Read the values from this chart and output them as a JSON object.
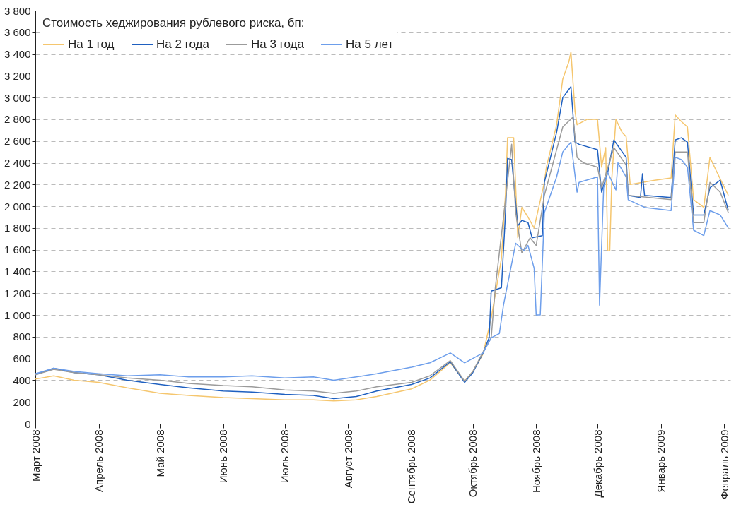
{
  "chart_data": {
    "type": "line",
    "legend_title": "Стоимость хеджирования рублевого риска, бп:",
    "legend": "top left",
    "grid": "y",
    "line_style": "solid",
    "marker": "none",
    "xlim": [
      "2008-03-01",
      "2009-02-04"
    ],
    "xticks": [
      {
        "value": "2008-03-01",
        "label": "Март 2008"
      },
      {
        "value": "2008-04-01",
        "label": "Апрель 2008"
      },
      {
        "value": "2008-05-01",
        "label": "Май 2008"
      },
      {
        "value": "2008-06-01",
        "label": "Июнь 2008"
      },
      {
        "value": "2008-07-01",
        "label": "Июль 2008"
      },
      {
        "value": "2008-08-01",
        "label": "Август 2008"
      },
      {
        "value": "2008-09-01",
        "label": "Сентябрь 2008"
      },
      {
        "value": "2008-10-01",
        "label": "Октябрь 2008"
      },
      {
        "value": "2008-11-01",
        "label": "Ноябрь 2008"
      },
      {
        "value": "2008-12-01",
        "label": "Декабрь 2008"
      },
      {
        "value": "2009-01-01",
        "label": "Январь 2009"
      },
      {
        "value": "2009-02-01",
        "label": "Февраль 2009"
      }
    ],
    "ylim": [
      0,
      3800
    ],
    "yticks": [
      0,
      200,
      400,
      600,
      800,
      {
        "value": 1000,
        "label": "1 000"
      },
      {
        "value": 1200,
        "label": "1 200"
      },
      {
        "value": 1400,
        "label": "1 400"
      },
      {
        "value": 1600,
        "label": "1 600"
      },
      {
        "value": 1800,
        "label": "1 800"
      },
      {
        "value": 2000,
        "label": "2 000"
      },
      {
        "value": 2200,
        "label": "2 200"
      },
      {
        "value": 2400,
        "label": "2 400"
      },
      {
        "value": 2600,
        "label": "2 600"
      },
      {
        "value": 2800,
        "label": "2 800"
      },
      {
        "value": 3000,
        "label": "3 000"
      },
      {
        "value": 3200,
        "label": "3 200"
      },
      {
        "value": 3400,
        "label": "3 400"
      },
      {
        "value": 3600,
        "label": "3 600"
      },
      {
        "value": 3800,
        "label": "3 800"
      }
    ],
    "series": [
      {
        "name": "На 1 год",
        "color": "#f5c66e",
        "x": [
          "2008-03-01",
          "2008-03-10",
          "2008-03-20",
          "2008-04-01",
          "2008-04-15",
          "2008-05-01",
          "2008-05-15",
          "2008-06-01",
          "2008-06-15",
          "2008-07-01",
          "2008-07-15",
          "2008-07-25",
          "2008-08-05",
          "2008-08-15",
          "2008-09-01",
          "2008-09-10",
          "2008-09-20",
          "2008-09-27",
          "2008-10-01",
          "2008-10-06",
          "2008-10-10",
          "2008-10-15",
          "2008-10-17",
          "2008-10-18",
          "2008-10-21",
          "2008-10-23",
          "2008-10-25",
          "2008-10-28",
          "2008-10-31",
          "2008-11-05",
          "2008-11-06",
          "2008-11-11",
          "2008-11-14",
          "2008-11-17",
          "2008-11-18",
          "2008-11-20",
          "2008-11-21",
          "2008-11-26",
          "2008-12-01",
          "2008-12-03",
          "2008-12-05",
          "2008-12-06",
          "2008-12-07",
          "2008-12-08",
          "2008-12-10",
          "2008-12-13",
          "2008-12-15",
          "2008-12-17",
          "2008-12-23",
          "2008-12-29",
          "2009-01-06",
          "2009-01-08",
          "2009-01-11",
          "2009-01-14",
          "2009-01-17",
          "2009-01-22",
          "2009-01-25",
          "2009-01-28",
          "2009-02-03"
        ],
        "values": [
          410,
          440,
          400,
          380,
          330,
          280,
          260,
          240,
          230,
          220,
          220,
          210,
          220,
          250,
          320,
          400,
          560,
          390,
          480,
          640,
          970,
          1520,
          2120,
          2630,
          2630,
          1710,
          1990,
          1900,
          1800,
          2220,
          2360,
          2750,
          3170,
          3330,
          3420,
          2870,
          2750,
          2800,
          2800,
          2360,
          2540,
          1590,
          1590,
          2260,
          2800,
          2680,
          2640,
          2200,
          2220,
          2240,
          2260,
          2840,
          2780,
          2730,
          2060,
          1990,
          2450,
          2330,
          2100
        ]
      },
      {
        "name": "На 2 года",
        "color": "#1f60c0",
        "x": [
          "2008-03-01",
          "2008-03-10",
          "2008-03-20",
          "2008-04-01",
          "2008-04-15",
          "2008-05-01",
          "2008-05-15",
          "2008-06-01",
          "2008-06-15",
          "2008-07-01",
          "2008-07-15",
          "2008-07-25",
          "2008-08-05",
          "2008-08-15",
          "2008-09-01",
          "2008-09-10",
          "2008-09-20",
          "2008-09-27",
          "2008-10-01",
          "2008-10-06",
          "2008-10-09",
          "2008-10-10",
          "2008-10-15",
          "2008-10-17",
          "2008-10-18",
          "2008-10-20",
          "2008-10-23",
          "2008-10-25",
          "2008-10-28",
          "2008-10-30",
          "2008-11-04",
          "2008-11-05",
          "2008-11-11",
          "2008-11-14",
          "2008-11-18",
          "2008-11-20",
          "2008-11-22",
          "2008-12-01",
          "2008-12-03",
          "2008-12-06",
          "2008-12-09",
          "2008-12-15",
          "2008-12-16",
          "2008-12-22",
          "2008-12-23",
          "2008-12-24",
          "2009-01-06",
          "2009-01-08",
          "2009-01-11",
          "2009-01-14",
          "2009-01-17",
          "2009-01-22",
          "2009-01-25",
          "2009-01-30",
          "2009-02-03"
        ],
        "values": [
          450,
          510,
          470,
          450,
          400,
          360,
          330,
          300,
          290,
          270,
          260,
          230,
          250,
          300,
          360,
          420,
          570,
          380,
          470,
          650,
          790,
          1220,
          1250,
          1940,
          2440,
          2430,
          1820,
          1870,
          1850,
          1710,
          1730,
          2220,
          2680,
          3000,
          3100,
          2590,
          2570,
          2520,
          2130,
          2310,
          2610,
          2450,
          2100,
          2080,
          2300,
          2100,
          2080,
          2610,
          2630,
          2590,
          1920,
          1920,
          2170,
          2240,
          1960
        ]
      },
      {
        "name": "На 3 года",
        "color": "#9b9b9b",
        "x": [
          "2008-03-01",
          "2008-03-10",
          "2008-03-20",
          "2008-04-01",
          "2008-04-15",
          "2008-05-01",
          "2008-05-15",
          "2008-06-01",
          "2008-06-15",
          "2008-07-01",
          "2008-07-15",
          "2008-07-25",
          "2008-08-05",
          "2008-08-15",
          "2008-09-01",
          "2008-09-10",
          "2008-09-20",
          "2008-09-27",
          "2008-10-01",
          "2008-10-06",
          "2008-10-10",
          "2008-10-12",
          "2008-10-17",
          "2008-10-20",
          "2008-10-22",
          "2008-10-25",
          "2008-10-29",
          "2008-11-01",
          "2008-11-05",
          "2008-11-11",
          "2008-11-14",
          "2008-11-19",
          "2008-11-21",
          "2008-11-24",
          "2008-12-01",
          "2008-12-03",
          "2008-12-09",
          "2008-12-15",
          "2008-12-16",
          "2009-01-06",
          "2009-01-08",
          "2009-01-14",
          "2009-01-17",
          "2009-01-22",
          "2009-01-25",
          "2009-01-30",
          "2009-02-03"
        ],
        "values": [
          450,
          500,
          470,
          450,
          420,
          400,
          370,
          350,
          340,
          310,
          300,
          280,
          300,
          340,
          380,
          440,
          580,
          390,
          480,
          660,
          790,
          1250,
          2060,
          2570,
          1940,
          1570,
          1710,
          1640,
          2100,
          2520,
          2730,
          2820,
          2450,
          2400,
          2360,
          2170,
          2540,
          2380,
          2100,
          2060,
          2500,
          2500,
          1850,
          1850,
          2220,
          2130,
          1940
        ]
      },
      {
        "name": "На 5 лет",
        "color": "#6d9eeb",
        "x": [
          "2008-03-01",
          "2008-03-10",
          "2008-03-20",
          "2008-04-01",
          "2008-04-15",
          "2008-05-01",
          "2008-05-15",
          "2008-06-01",
          "2008-06-15",
          "2008-07-01",
          "2008-07-15",
          "2008-07-25",
          "2008-08-05",
          "2008-08-15",
          "2008-09-01",
          "2008-09-10",
          "2008-09-20",
          "2008-09-27",
          "2008-10-01",
          "2008-10-06",
          "2008-10-10",
          "2008-10-14",
          "2008-10-16",
          "2008-10-22",
          "2008-10-26",
          "2008-10-28",
          "2008-10-31",
          "2008-11-01",
          "2008-11-03",
          "2008-11-05",
          "2008-11-11",
          "2008-11-14",
          "2008-11-18",
          "2008-11-21",
          "2008-11-22",
          "2008-12-01",
          "2008-12-02",
          "2008-12-04",
          "2008-12-06",
          "2008-12-10",
          "2008-12-11",
          "2008-12-15",
          "2008-12-16",
          "2008-12-24",
          "2009-01-06",
          "2009-01-08",
          "2009-01-11",
          "2009-01-14",
          "2009-01-17",
          "2009-01-22",
          "2009-01-25",
          "2009-01-30",
          "2009-02-03"
        ],
        "values": [
          460,
          510,
          480,
          460,
          440,
          450,
          430,
          430,
          440,
          420,
          430,
          400,
          430,
          460,
          520,
          560,
          650,
          560,
          600,
          650,
          790,
          830,
          1090,
          1660,
          1590,
          1640,
          1430,
          1000,
          1000,
          1940,
          2270,
          2500,
          2590,
          2130,
          2220,
          2270,
          1090,
          2170,
          2310,
          2150,
          2400,
          2270,
          2060,
          1990,
          1960,
          2450,
          2430,
          2360,
          1780,
          1730,
          1960,
          1920,
          1800
        ]
      }
    ]
  }
}
